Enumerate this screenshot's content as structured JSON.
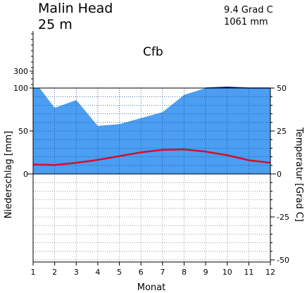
{
  "header": {
    "station": "Malin Head",
    "elevation": "25 m",
    "annual_temp": "9.4 Grad C",
    "annual_precip": "1061 mm",
    "climate_class": "Cfb"
  },
  "chart_data": {
    "type": "area",
    "title": "Malin Head",
    "xlabel": "Monat",
    "ylabel_left": "Niederschlag [mm]",
    "ylabel_right": "Temperatur [Grad C]",
    "categories": [
      "1",
      "2",
      "3",
      "4",
      "5",
      "6",
      "7",
      "8",
      "9",
      "10",
      "11",
      "12"
    ],
    "x_ticks": [
      "1",
      "2",
      "3",
      "4",
      "5",
      "6",
      "7",
      "8",
      "9",
      "10",
      "11",
      "12"
    ],
    "left_ticks": [
      "0",
      "50",
      "100",
      "300"
    ],
    "right_ticks": [
      "50",
      "25",
      "0",
      "-25",
      "-50"
    ],
    "precip_ylim": [
      0,
      100
    ],
    "temp_ylim": [
      -50,
      50
    ],
    "grid": true,
    "series": [
      {
        "name": "Niederschlag",
        "type": "area",
        "unit": "mm",
        "color": "#4b9ef2",
        "x": [
          1,
          1.3,
          2,
          3,
          4,
          5,
          6,
          7,
          8,
          9,
          10,
          11,
          12
        ],
        "values": [
          100,
          100,
          77,
          86,
          56,
          58,
          65,
          72,
          92,
          100,
          101,
          100,
          100
        ]
      },
      {
        "name": "Temperatur",
        "type": "line",
        "unit": "Grad C",
        "color": "#d0102a",
        "x": [
          1,
          2,
          3,
          4,
          5,
          6,
          7,
          8,
          9,
          10,
          11,
          12
        ],
        "values": [
          5.5,
          5.2,
          6.5,
          8.2,
          10.4,
          12.6,
          14.0,
          14.3,
          13.0,
          10.9,
          8.0,
          6.5
        ]
      }
    ]
  }
}
